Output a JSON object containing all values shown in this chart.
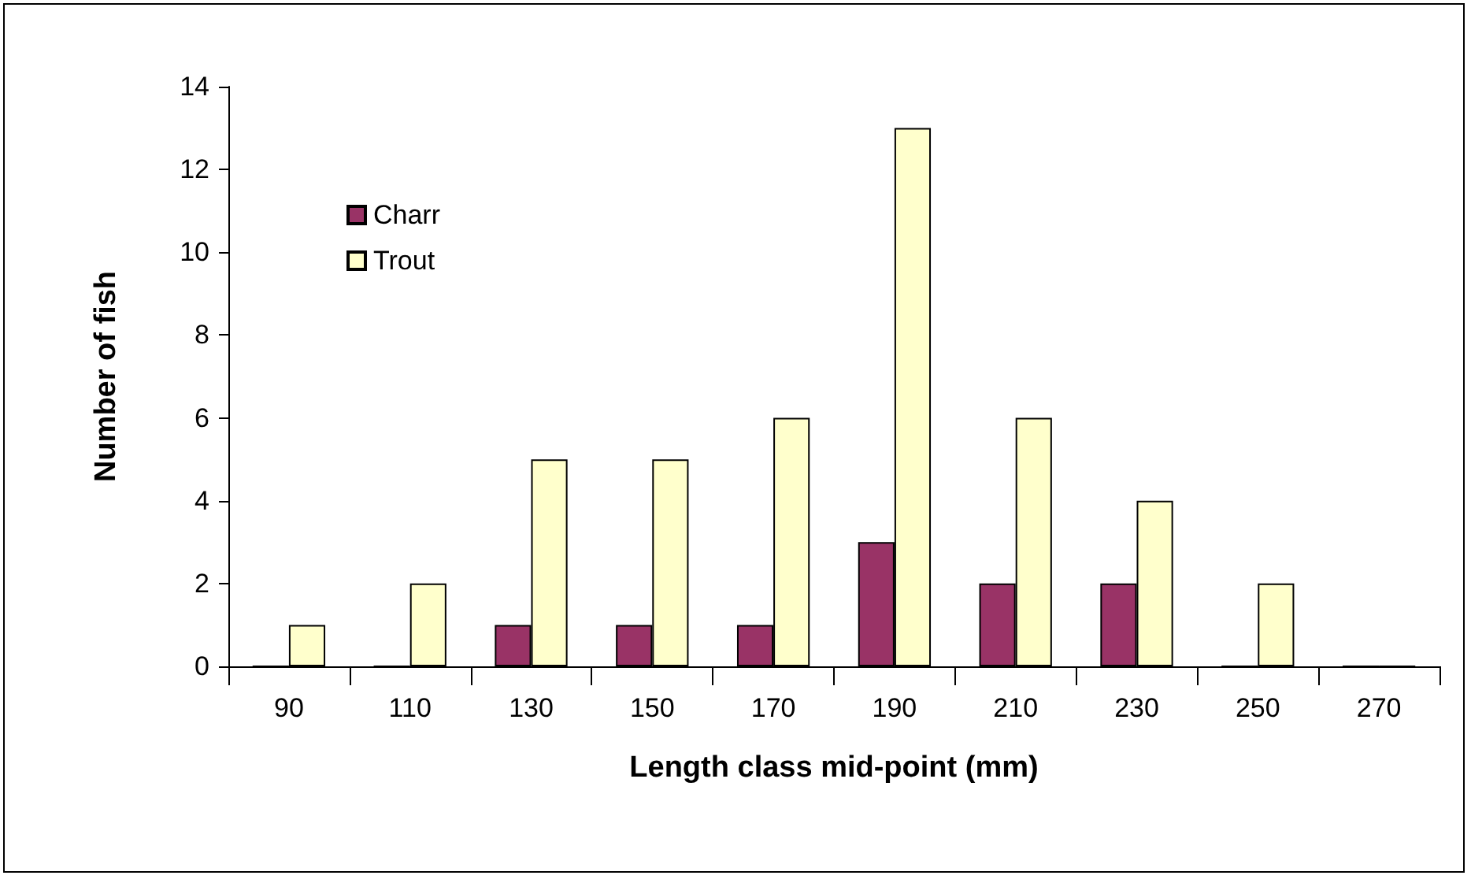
{
  "chart_data": {
    "type": "bar",
    "xlabel": "Length class mid-point (mm)",
    "ylabel": "Number of fish",
    "categories": [
      "90",
      "110",
      "130",
      "150",
      "170",
      "190",
      "210",
      "230",
      "250",
      "270"
    ],
    "series": [
      {
        "name": "Charr",
        "color": "#993366",
        "values": [
          0,
          0,
          1,
          1,
          1,
          3,
          2,
          2,
          0,
          0
        ]
      },
      {
        "name": "Trout",
        "color": "#ffffcc",
        "values": [
          1,
          2,
          5,
          5,
          6,
          13,
          6,
          4,
          2,
          0
        ]
      }
    ],
    "ylim": [
      0,
      14
    ],
    "yticks": [
      0,
      2,
      4,
      6,
      8,
      10,
      12,
      14
    ],
    "grid": false,
    "legend": "top left"
  }
}
